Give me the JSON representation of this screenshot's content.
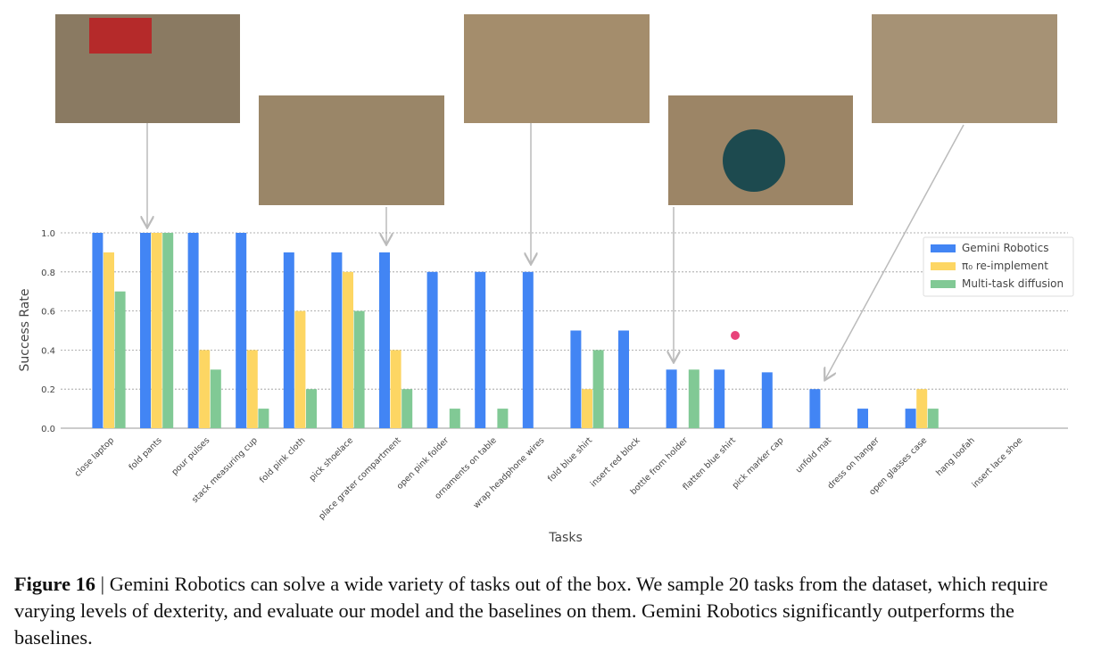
{
  "chart_data": {
    "type": "bar",
    "categories": [
      "close laptop",
      "fold pants",
      "pour pulses",
      "stack measuring cup",
      "fold pink cloth",
      "pick shoelace",
      "place grater compartment",
      "open pink folder",
      "ornaments on table",
      "wrap headphone wires",
      "fold blue shirt",
      "insert red block",
      "bottle from holder",
      "flatten blue shirt",
      "pick marker cap",
      "unfold mat",
      "dress on hanger",
      "open glasses case",
      "hang loofah",
      "insert lace shoe"
    ],
    "series": [
      {
        "name": "Gemini Robotics",
        "color": "#4285f4",
        "values": [
          1.0,
          1.0,
          1.0,
          1.0,
          0.9,
          0.9,
          0.9,
          0.8,
          0.8,
          0.8,
          0.5,
          0.5,
          0.3,
          0.3,
          0.286,
          0.2,
          0.1,
          0.1,
          0,
          0
        ]
      },
      {
        "name": "π₀ re-implement",
        "color": "#fdd663",
        "values": [
          0.9,
          1.0,
          0.4,
          0.4,
          0.6,
          0.8,
          0.4,
          0,
          0,
          0,
          0.2,
          0,
          0,
          0,
          0,
          0,
          0,
          0.2,
          0,
          0
        ]
      },
      {
        "name": "Multi-task diffusion",
        "color": "#81c995",
        "values": [
          0.7,
          1.0,
          0.3,
          0.1,
          0.2,
          0.6,
          0.2,
          0.1,
          0.1,
          0,
          0.4,
          0,
          0.3,
          0,
          0,
          0,
          0,
          0.1,
          0,
          0
        ]
      }
    ],
    "xlabel": "Tasks",
    "ylabel": "Success Rate",
    "ylim": [
      0,
      1
    ],
    "yticks": [
      {
        "value": 0,
        "label": "0.0"
      },
      0.2,
      0.4,
      0.6,
      0.8,
      {
        "value": 1,
        "label": "1.0"
      }
    ],
    "grid": true,
    "legend": "upper right"
  },
  "caption": {
    "label": "Figure 16",
    "text": "| Gemini Robotics can solve a wide variety of tasks out of the box. We sample 20 tasks from the dataset, which require varying levels of dexterity, and evaluate our model and the baselines on them. Gemini Robotics significantly outperforms the baselines."
  }
}
